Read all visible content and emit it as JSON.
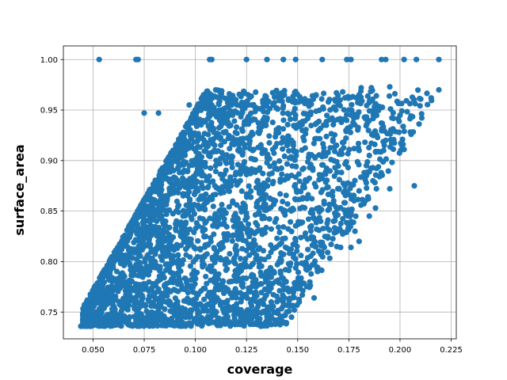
{
  "chart_data": {
    "type": "scatter",
    "title": "",
    "xlabel": "coverage",
    "ylabel": "surface_area",
    "xlim": [
      0.0355,
      0.2275
    ],
    "ylim": [
      0.7235,
      1.0135
    ],
    "xticks": [
      0.05,
      0.075,
      0.1,
      0.125,
      0.15,
      0.175,
      0.2,
      0.225
    ],
    "xtick_labels": [
      "0.050",
      "0.075",
      "0.100",
      "0.125",
      "0.150",
      "0.175",
      "0.200",
      "0.225"
    ],
    "yticks": [
      0.75,
      0.8,
      0.85,
      0.9,
      0.95,
      1.0
    ],
    "ytick_labels": [
      "0.75",
      "0.80",
      "0.85",
      "0.90",
      "0.95",
      "1.00"
    ],
    "grid": true,
    "legend": "none",
    "marker_color": "#1f77b4",
    "series": [
      {
        "points": [
          [
            0.053,
            1.0
          ],
          [
            0.071,
            1.0
          ],
          [
            0.072,
            1.0
          ],
          [
            0.107,
            1.0
          ],
          [
            0.108,
            1.0
          ],
          [
            0.125,
            1.0
          ],
          [
            0.135,
            1.0
          ],
          [
            0.143,
            1.0
          ],
          [
            0.149,
            1.0
          ],
          [
            0.162,
            1.0
          ],
          [
            0.174,
            1.0
          ],
          [
            0.176,
            1.0
          ],
          [
            0.191,
            1.0
          ],
          [
            0.193,
            1.0
          ],
          [
            0.202,
            1.0
          ],
          [
            0.208,
            1.0
          ],
          [
            0.219,
            1.0
          ],
          [
            0.075,
            0.947
          ],
          [
            0.082,
            0.947
          ],
          [
            0.097,
            0.955
          ],
          [
            0.101,
            0.95
          ],
          [
            0.108,
            0.955
          ],
          [
            0.116,
            0.957
          ],
          [
            0.126,
            0.955
          ],
          [
            0.133,
            0.957
          ],
          [
            0.14,
            0.963
          ],
          [
            0.151,
            0.963
          ],
          [
            0.159,
            0.965
          ],
          [
            0.165,
            0.958
          ],
          [
            0.172,
            0.968
          ],
          [
            0.181,
            0.972
          ],
          [
            0.186,
            0.972
          ],
          [
            0.195,
            0.973
          ],
          [
            0.219,
            0.97
          ],
          [
            0.2,
            0.945
          ],
          [
            0.206,
            0.928
          ],
          [
            0.193,
            0.92
          ],
          [
            0.18,
            0.91
          ],
          [
            0.185,
            0.905
          ],
          [
            0.192,
            0.91
          ],
          [
            0.202,
            0.911
          ],
          [
            0.19,
            0.884
          ],
          [
            0.195,
            0.872
          ],
          [
            0.207,
            0.875
          ],
          [
            0.18,
            0.87
          ],
          [
            0.183,
            0.86
          ],
          [
            0.188,
            0.853
          ],
          [
            0.185,
            0.845
          ],
          [
            0.178,
            0.83
          ],
          [
            0.172,
            0.829
          ],
          [
            0.18,
            0.82
          ],
          [
            0.171,
            0.814
          ],
          [
            0.176,
            0.814
          ],
          [
            0.158,
            0.764
          ],
          [
            0.147,
            0.745
          ],
          [
            0.135,
            0.745
          ],
          [
            0.132,
            0.736
          ],
          [
            0.127,
            0.744
          ],
          [
            0.044,
            0.736
          ],
          [
            0.047,
            0.736
          ],
          [
            0.049,
            0.736
          ],
          [
            0.046,
            0.745
          ],
          [
            0.046,
            0.754
          ],
          [
            0.05,
            0.755
          ],
          [
            0.052,
            0.765
          ]
        ]
      }
    ]
  }
}
